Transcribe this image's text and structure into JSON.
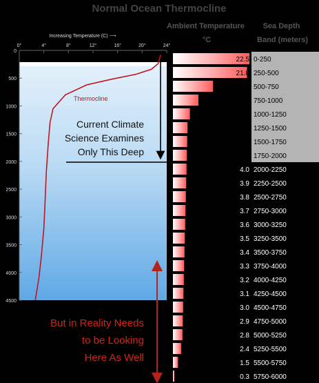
{
  "chart_data": [
    {
      "type": "line",
      "name": "Thermocline",
      "title": "Normal Ocean Thermocline",
      "xlabel": "Increasing Temperature (C) ⟶",
      "x_ticks": [
        "0°",
        "4°",
        "8°",
        "12°",
        "16°",
        "20°",
        "24°"
      ],
      "y_ticks": [
        "0",
        "500",
        "1000",
        "1500",
        "2000",
        "2500",
        "3000",
        "3500",
        "4000",
        "4500"
      ],
      "xlim": [
        0,
        24
      ],
      "ylim": [
        0,
        4500
      ],
      "y_inverted": true,
      "curve_label": "Thermocline",
      "x": [
        23,
        22.6,
        21.5,
        19,
        15,
        11,
        7.5,
        5.5,
        5,
        4.7,
        4.4,
        4.2,
        4.0,
        3.6,
        3.2,
        2.6
      ],
      "y": [
        80,
        240,
        340,
        430,
        520,
        620,
        800,
        1050,
        1300,
        1700,
        2200,
        2700,
        3200,
        3700,
        4100,
        4500
      ]
    },
    {
      "type": "bar",
      "orientation": "horizontal",
      "header_temp": "Ambient Temperature °C",
      "header_band": "Sea Depth Band (meters)",
      "xlim": [
        0,
        22.5
      ],
      "categories": [
        "0-250",
        "250-500",
        "500-750",
        "750-1000",
        "1000-1250",
        "1250-1500",
        "1500-1750",
        "1750-2000",
        "2000-2250",
        "2250-2500",
        "2500-2750",
        "2750-3000",
        "3000-3250",
        "3250-3500",
        "3500-3750",
        "3750-4000",
        "4000-4250",
        "4250-4500",
        "4500-4750",
        "4750-5000",
        "5000-5250",
        "5250-5500",
        "5500-5750",
        "5750-6000"
      ],
      "values": [
        22.5,
        21.8,
        11.8,
        7.5,
        5.0,
        4.3,
        4.2,
        4.1,
        4.0,
        3.9,
        3.8,
        3.7,
        3.6,
        3.5,
        3.4,
        3.3,
        3.2,
        3.1,
        3.0,
        2.9,
        2.8,
        2.4,
        1.5,
        0.3
      ]
    }
  ],
  "annotations": {
    "current_text": [
      "Current Climate",
      "Science Examines",
      "Only This Deep"
    ],
    "reality_text": [
      "But in Reality Needs",
      "to be Looking",
      "Here As Well"
    ]
  },
  "colors": {
    "background": "#000000",
    "text": "#ffffff",
    "shallow_band": "#b4b4b4",
    "curve": "#c0141e",
    "reality_text": "#d42418",
    "reality_arrow": "#b2241a"
  }
}
